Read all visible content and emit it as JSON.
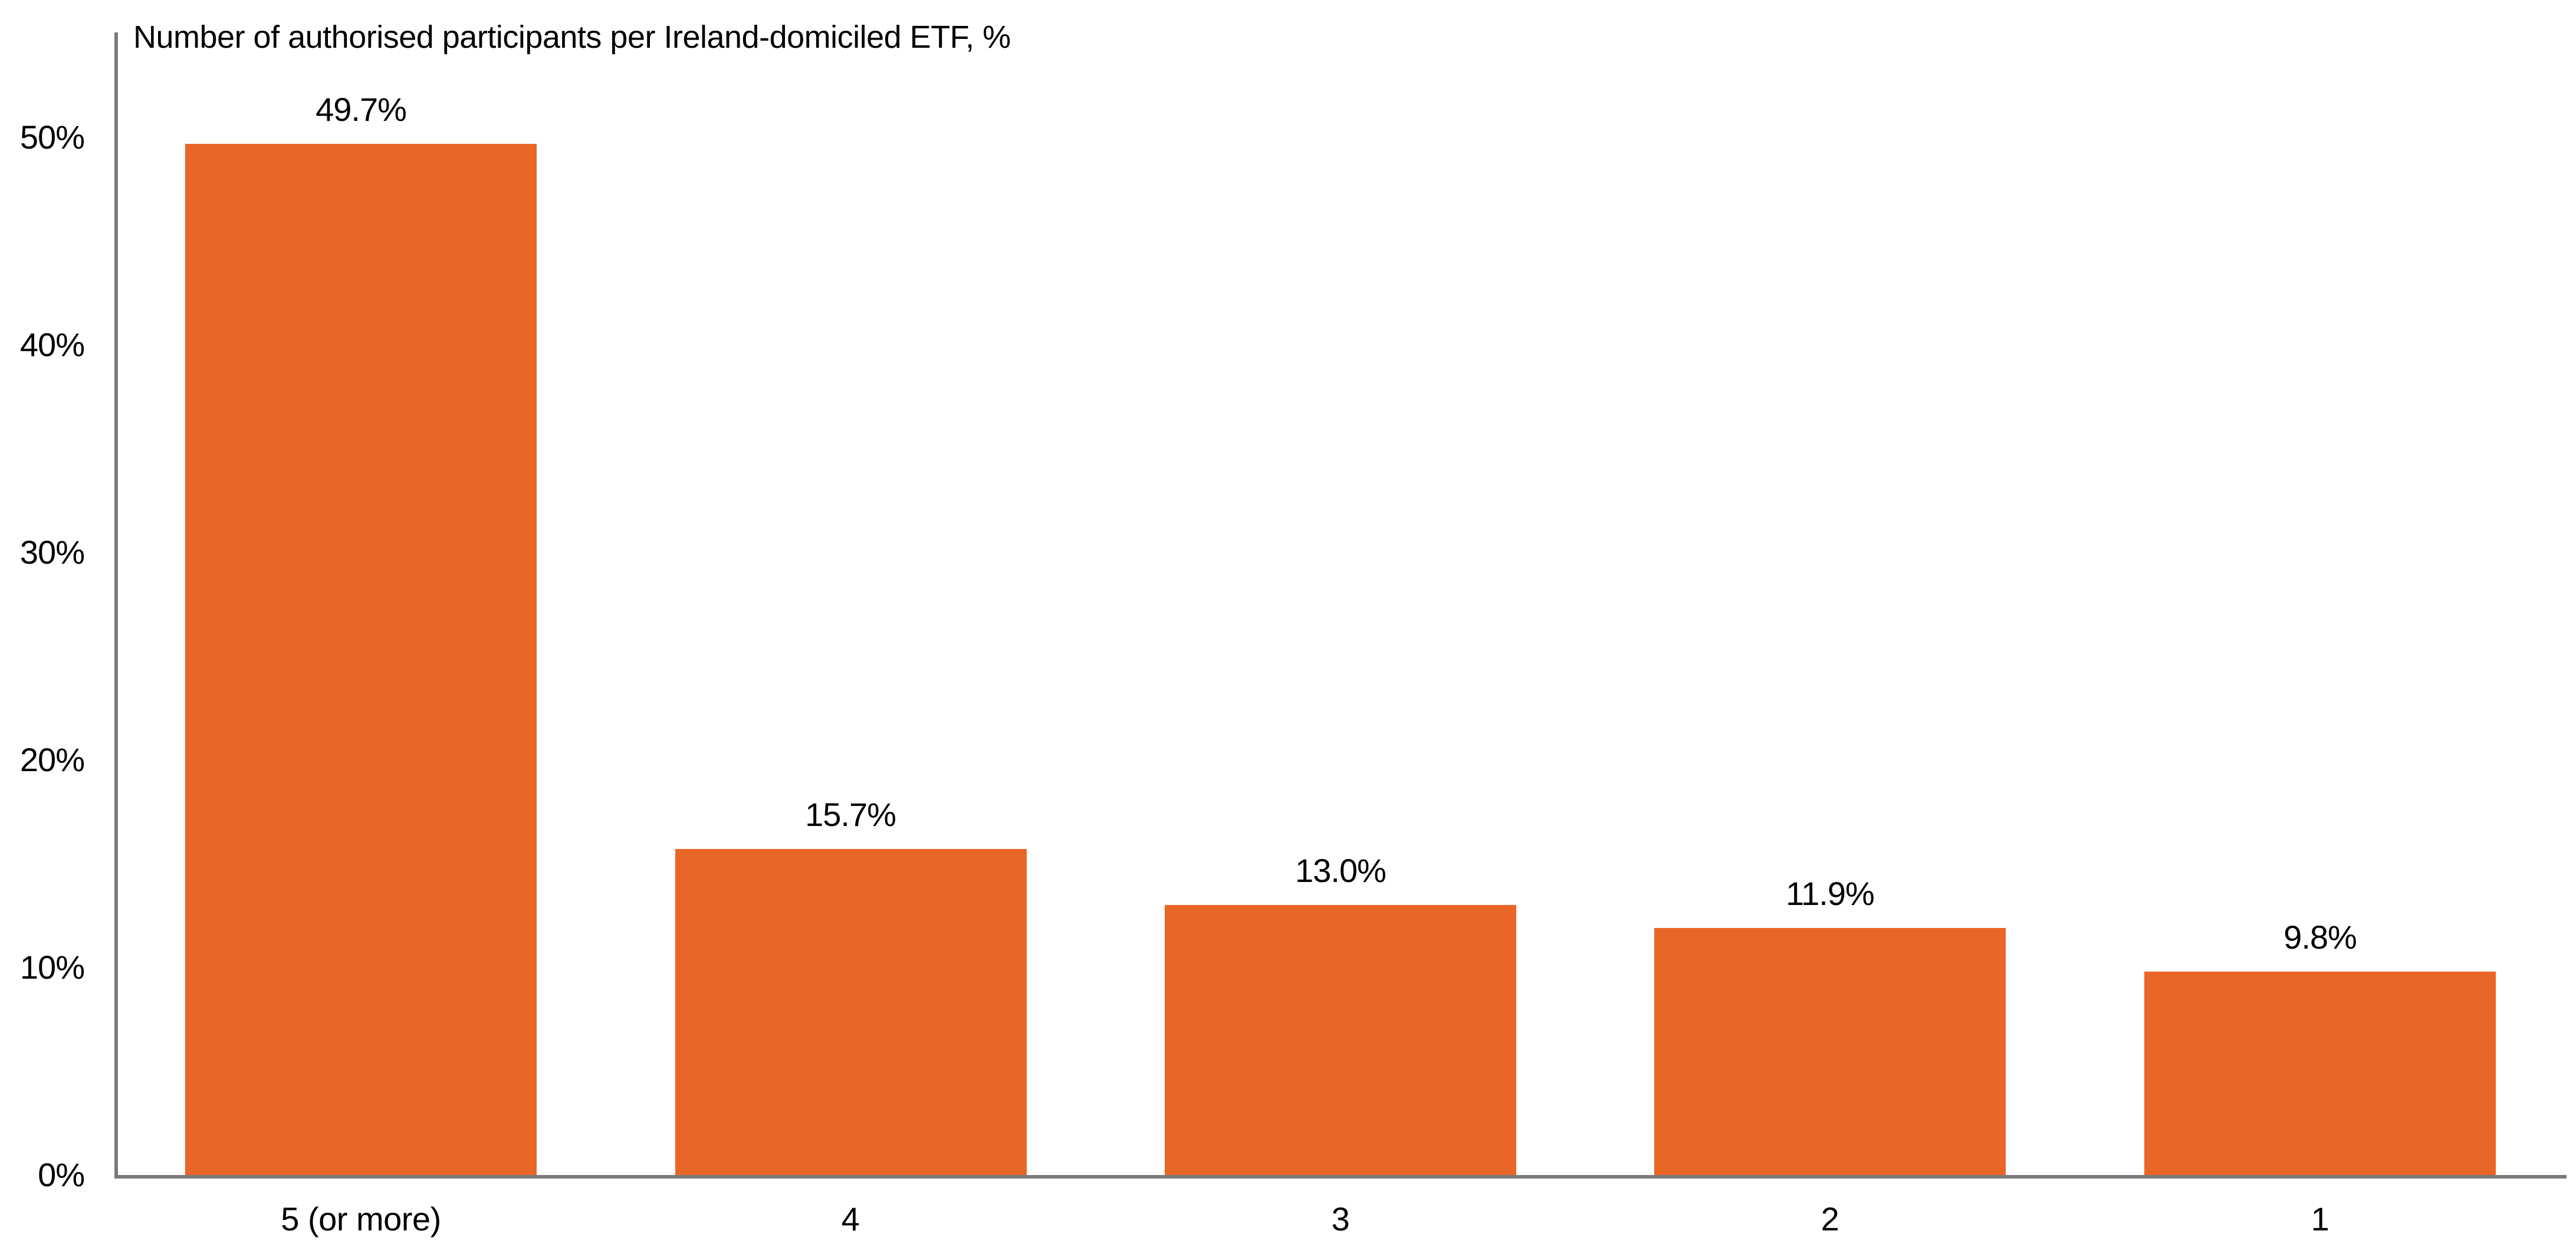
{
  "colors": {
    "bar": "#EA6627",
    "axis": "#7A7A7A",
    "text": "#000000",
    "background": "#FFFFFF"
  },
  "chart_data": {
    "type": "bar",
    "title": "Number of authorised participants per Ireland-domiciled ETF, %",
    "xlabel": "",
    "ylabel": "",
    "categories": [
      "5 (or more)",
      "4",
      "3",
      "2",
      "1"
    ],
    "values": [
      49.7,
      15.7,
      13.0,
      11.9,
      9.8
    ],
    "value_labels": [
      "49.7%",
      "15.7%",
      "13.0%",
      "11.9%",
      "9.8%"
    ],
    "y_ticks": [
      {
        "value": 0,
        "label": "0%"
      },
      {
        "value": 10,
        "label": "10%"
      },
      {
        "value": 20,
        "label": "20%"
      },
      {
        "value": 30,
        "label": "30%"
      },
      {
        "value": 40,
        "label": "40%"
      },
      {
        "value": 50,
        "label": "50%"
      }
    ],
    "ylim": [
      0,
      55
    ],
    "grid": false,
    "legend": false,
    "bar_color": "#EA6627",
    "data_labels_shown": true
  }
}
